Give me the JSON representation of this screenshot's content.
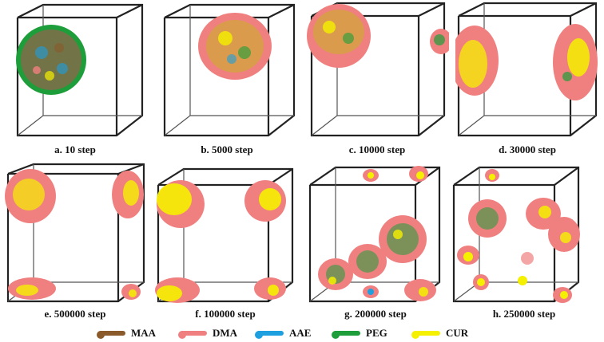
{
  "figure": {
    "panels": [
      {
        "label": "a. 10 step"
      },
      {
        "label": "b. 5000 step"
      },
      {
        "label": "c. 10000 step"
      },
      {
        "label": "d. 30000 step"
      },
      {
        "label": "e. 500000 step"
      },
      {
        "label": "f. 100000 step"
      },
      {
        "label": "g. 200000 step"
      },
      {
        "label": "h. 250000 step"
      }
    ]
  },
  "legend": [
    {
      "label": "MAA",
      "color": "#8B5A2B"
    },
    {
      "label": "DMA",
      "color": "#F08080"
    },
    {
      "label": "AAE",
      "color": "#1E9FE0"
    },
    {
      "label": "PEG",
      "color": "#1E9E3A"
    },
    {
      "label": "CUR",
      "color": "#F5F000"
    }
  ]
}
